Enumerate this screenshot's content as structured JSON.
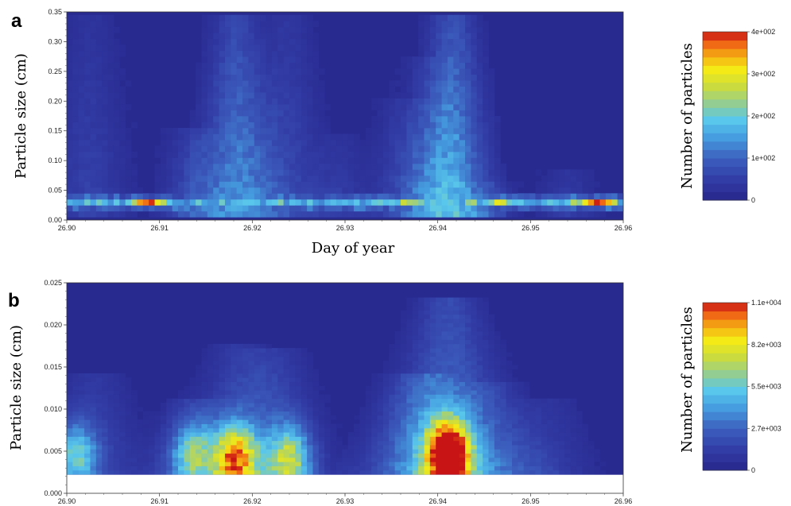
{
  "chart_data": [
    {
      "type": "heatmap",
      "panel": "a",
      "title": "",
      "xlabel": "Day of  year",
      "ylabel": "Particle size (cm)",
      "xlim": [
        26.9,
        26.96
      ],
      "ylim": [
        0.0,
        0.35
      ],
      "x_ticks": [
        "26.90",
        "26.91",
        "26.92",
        "26.93",
        "26.94",
        "26.95",
        "26.96"
      ],
      "y_ticks": [
        "0.00",
        "0.05",
        "0.10",
        "0.15",
        "0.20",
        "0.25",
        "0.30",
        "0.35"
      ],
      "colorbar": {
        "label": "Number of particles",
        "ticks": [
          "0",
          "1e+002",
          "2e+002",
          "3e+002",
          "4e+002"
        ],
        "range": [
          0,
          400
        ]
      },
      "grid": false,
      "y_bins": [
        0.01,
        0.02,
        0.03,
        0.04,
        0.05,
        0.06,
        0.07,
        0.08,
        0.09,
        0.1,
        0.11,
        0.12,
        0.13,
        0.14,
        0.15,
        0.16,
        0.17,
        0.18,
        0.19,
        0.2,
        0.21,
        0.22,
        0.23,
        0.24,
        0.25,
        0.26,
        0.27,
        0.28,
        0.29,
        0.3,
        0.31,
        0.32,
        0.33,
        0.34
      ],
      "plumes": [
        {
          "x": 26.9024,
          "top": 0.34,
          "peak": 45
        },
        {
          "x": 26.9135,
          "top": 0.15,
          "peak": 70
        },
        {
          "x": 26.9183,
          "top": 0.34,
          "peak": 130
        },
        {
          "x": 26.9236,
          "top": 0.34,
          "peak": 60
        },
        {
          "x": 26.9295,
          "top": 0.14,
          "peak": 40
        },
        {
          "x": 26.936,
          "top": 0.2,
          "peak": 45
        },
        {
          "x": 26.9385,
          "top": 0.27,
          "peak": 40
        },
        {
          "x": 26.9416,
          "top": 0.34,
          "peak": 160
        },
        {
          "x": 26.946,
          "top": 0.06,
          "peak": 40
        },
        {
          "x": 26.954,
          "top": 0.08,
          "peak": 40
        }
      ],
      "band": {
        "y": 0.03,
        "base": 170,
        "hotspots": [
          {
            "x": 26.909,
            "value": 380
          },
          {
            "x": 26.9572,
            "value": 400
          },
          {
            "x": 26.946,
            "value": 250
          },
          {
            "x": 26.937,
            "value": 240
          }
        ]
      }
    },
    {
      "type": "heatmap",
      "panel": "b",
      "title": "",
      "xlabel": "",
      "ylabel": "Particle size (cm)",
      "xlim": [
        26.9,
        26.96
      ],
      "ylim": [
        0.0,
        0.025
      ],
      "x_ticks": [
        "26.90",
        "26.91",
        "26.92",
        "26.93",
        "26.94",
        "26.95",
        "26.96"
      ],
      "y_ticks": [
        "0.000",
        "0.005",
        "0.010",
        "0.015",
        "0.020",
        "0.025"
      ],
      "colorbar": {
        "label": "Number of particles",
        "ticks": [
          "0",
          "2.7e+003",
          "5.5e+003",
          "8.2e+003",
          "1.1e+004"
        ],
        "range": [
          0,
          11000
        ]
      },
      "grid": false,
      "y_bins": [
        0.0025,
        0.003,
        0.0035,
        0.004,
        0.0045,
        0.005,
        0.0055,
        0.006,
        0.0065,
        0.007,
        0.0075,
        0.008,
        0.0085,
        0.009,
        0.0095,
        0.01,
        0.0105,
        0.011,
        0.0115,
        0.012,
        0.0125,
        0.013,
        0.0135,
        0.014,
        0.0145,
        0.015,
        0.0155,
        0.016,
        0.0165,
        0.017,
        0.0175,
        0.018,
        0.0185,
        0.019,
        0.0195,
        0.02,
        0.0205,
        0.021,
        0.0215,
        0.022,
        0.0225,
        0.023,
        0.0235,
        0.024,
        0.0245
      ],
      "blobs": [
        {
          "x": 26.901,
          "y": 0.0045,
          "peak": 4400
        },
        {
          "x": 26.9135,
          "y": 0.0045,
          "peak": 4400
        },
        {
          "x": 26.9182,
          "y": 0.004,
          "peak": 7600
        },
        {
          "x": 26.924,
          "y": 0.004,
          "peak": 5400
        },
        {
          "x": 26.9412,
          "y": 0.0045,
          "peak": 11000
        }
      ],
      "ridges": [
        {
          "x": 26.903,
          "top": 0.014,
          "peak": 1600
        },
        {
          "x": 26.914,
          "top": 0.011,
          "peak": 1500
        },
        {
          "x": 26.9185,
          "top": 0.0175,
          "peak": 1800
        },
        {
          "x": 26.9225,
          "top": 0.017,
          "peak": 1800
        },
        {
          "x": 26.938,
          "top": 0.014,
          "peak": 2200
        },
        {
          "x": 26.9412,
          "top": 0.023,
          "peak": 3200
        },
        {
          "x": 26.9455,
          "top": 0.013,
          "peak": 1400
        },
        {
          "x": 26.952,
          "top": 0.011,
          "peak": 1200
        }
      ]
    }
  ]
}
